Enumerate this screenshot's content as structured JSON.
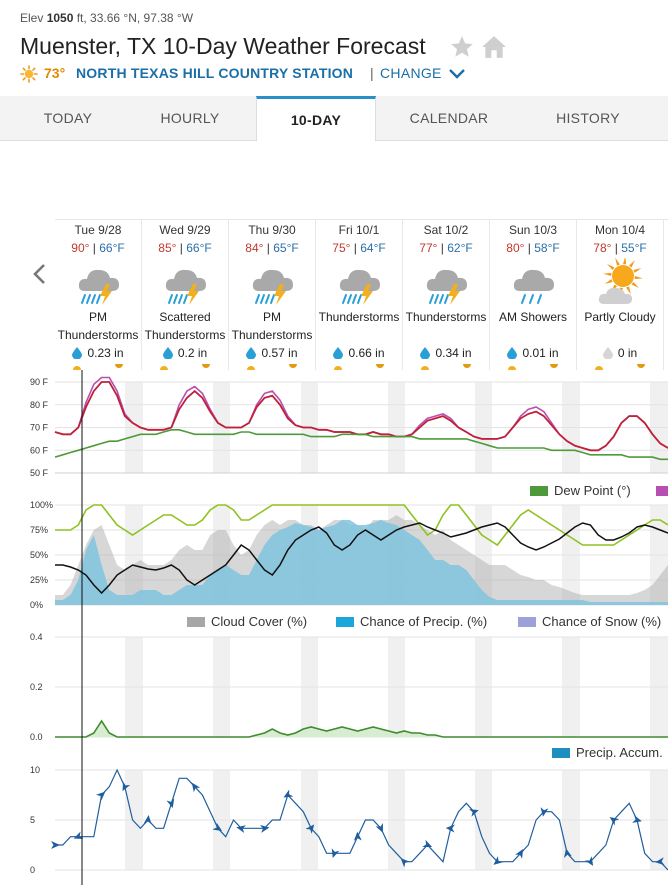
{
  "header": {
    "elev_label": "Elev",
    "elev_value": "1050",
    "elev_rest": " ft, 33.66 °N, 97.38 °W",
    "title": "Muenster, TX 10-Day Weather Forecast",
    "current_temp": "73°",
    "station": "NORTH TEXAS HILL COUNTRY STATION",
    "separator": "|",
    "change": "CHANGE"
  },
  "tabs": [
    {
      "label": "TODAY"
    },
    {
      "label": "HOURLY"
    },
    {
      "label": "10-DAY"
    },
    {
      "label": "CALENDAR"
    },
    {
      "label": "HISTORY"
    }
  ],
  "days": [
    {
      "date": "Tue 9/28",
      "hi": "90°",
      "lo": "66°F",
      "icon": "thunderstorm-icon",
      "cond1": "PM",
      "cond2": "Thunderstorms",
      "precip": "0.23 in"
    },
    {
      "date": "Wed 9/29",
      "hi": "85°",
      "lo": "66°F",
      "icon": "thunderstorm-icon",
      "cond1": "Scattered",
      "cond2": "Thunderstorms",
      "precip": "0.2 in"
    },
    {
      "date": "Thu 9/30",
      "hi": "84°",
      "lo": "65°F",
      "icon": "thunderstorm-icon",
      "cond1": "PM",
      "cond2": "Thunderstorms",
      "precip": "0.57 in"
    },
    {
      "date": "Fri 10/1",
      "hi": "75°",
      "lo": "64°F",
      "icon": "thunderstorm-icon",
      "cond1": "Thunderstorms",
      "cond2": "",
      "precip": "0.66 in"
    },
    {
      "date": "Sat 10/2",
      "hi": "77°",
      "lo": "62°F",
      "icon": "thunderstorm-icon",
      "cond1": "Thunderstorms",
      "cond2": "",
      "precip": "0.34 in"
    },
    {
      "date": "Sun 10/3",
      "hi": "80°",
      "lo": "58°F",
      "icon": "showers-icon",
      "cond1": "AM Showers",
      "cond2": "",
      "precip": "0.01 in"
    },
    {
      "date": "Mon 10/4",
      "hi": "78°",
      "lo": "55°F",
      "icon": "partly-cloudy-icon",
      "cond1": "Partly Cloudy",
      "cond2": "",
      "precip": "0 in"
    }
  ],
  "legends": {
    "dew_point": "Dew Point (°)",
    "cloud_cover": "Cloud Cover (%)",
    "chance_precip": "Chance of Precip. (%)",
    "chance_snow": "Chance of Snow (%)",
    "precip_accum": "Precip. Accum."
  },
  "colors": {
    "temp": "#c0203a",
    "heat_index": "#b84fb0",
    "dew_point": "#4e9a3a",
    "cloud_cover": "#a6a6a6",
    "precip_fill": "#7fc4de",
    "precip_line": "#8fc220",
    "humidity_line": "#111111",
    "accum_fill": "#d8ecd2",
    "accum_line": "#3d8c2e",
    "wind_line": "#1f5e9e",
    "accum_legend": "#1c8fc0",
    "snow_legend": "#9ea0d8"
  },
  "chart_data": [
    {
      "type": "line",
      "title": "",
      "y_ticks": [
        "90 F",
        "80 F",
        "70 F",
        "60 F",
        "50 F"
      ],
      "ylim": [
        50,
        90
      ],
      "series": [
        {
          "name": "",
          "values": [
            68,
            67,
            67,
            70,
            79,
            86,
            90,
            90,
            84,
            75,
            72,
            70,
            69,
            69,
            69,
            70,
            78,
            83,
            86,
            83,
            77,
            72,
            70,
            70,
            70,
            72,
            79,
            83,
            84,
            80,
            74,
            71,
            70,
            70,
            69,
            69,
            68,
            68,
            68,
            67,
            67,
            68,
            67,
            67,
            66,
            66,
            67,
            70,
            73,
            74,
            75,
            73,
            70,
            68,
            66,
            65,
            65,
            65,
            66,
            70,
            74,
            76,
            77,
            75,
            71,
            67,
            64,
            62,
            61,
            60,
            60,
            62,
            66,
            72,
            75,
            75,
            72,
            67,
            63,
            61
          ]
        },
        {
          "name": "",
          "values": [
            68,
            67,
            67,
            70,
            81,
            89,
            92,
            92,
            86,
            76,
            72,
            70,
            69,
            69,
            69,
            70,
            80,
            86,
            88,
            85,
            78,
            72,
            70,
            70,
            70,
            72,
            80,
            85,
            86,
            82,
            75,
            71,
            70,
            70,
            69,
            69,
            68,
            68,
            68,
            67,
            67,
            68,
            67,
            67,
            66,
            66,
            67,
            71,
            74,
            75,
            76,
            74,
            70,
            68,
            66,
            65,
            65,
            65,
            66,
            70,
            75,
            78,
            79,
            77,
            72,
            67,
            64,
            62,
            61,
            60,
            60,
            62,
            66,
            72,
            75,
            75,
            72,
            67,
            63,
            61
          ]
        },
        {
          "name": "Dew Point (°)",
          "values": [
            57,
            58,
            59,
            60,
            61,
            62,
            63,
            64,
            64,
            65,
            66,
            67,
            67,
            67,
            68,
            69,
            69,
            68,
            67,
            67,
            67,
            67,
            67,
            67,
            68,
            68,
            67,
            67,
            67,
            67,
            67,
            67,
            67,
            66,
            66,
            66,
            66,
            67,
            67,
            67,
            67,
            66,
            66,
            66,
            66,
            66,
            66,
            65,
            65,
            65,
            65,
            65,
            65,
            65,
            64,
            63,
            62,
            61,
            61,
            61,
            61,
            61,
            61,
            61,
            60,
            60,
            60,
            60,
            59,
            58,
            58,
            58,
            58,
            58,
            57,
            57,
            57,
            57,
            56,
            56
          ]
        }
      ]
    },
    {
      "type": "area",
      "title": "",
      "y_ticks": [
        "100%",
        "75%",
        "50%",
        "25%",
        "0%"
      ],
      "ylim": [
        0,
        100
      ],
      "series": [
        {
          "name": "Cloud Cover (%)",
          "values": [
            10,
            10,
            20,
            40,
            60,
            75,
            80,
            60,
            40,
            35,
            40,
            45,
            40,
            40,
            40,
            45,
            55,
            60,
            55,
            55,
            70,
            75,
            75,
            60,
            50,
            55,
            70,
            80,
            85,
            80,
            85,
            85,
            80,
            80,
            75,
            80,
            85,
            85,
            80,
            80,
            75,
            85,
            85,
            85,
            90,
            85,
            85,
            80,
            75,
            70,
            75,
            65,
            60,
            55,
            50,
            45,
            40,
            40,
            40,
            35,
            30,
            28,
            25,
            25,
            20,
            18,
            15,
            12,
            10,
            10,
            10,
            10,
            10,
            10,
            10,
            12,
            15,
            20,
            30,
            40
          ]
        },
        {
          "name": "Chance of Precip. (%)",
          "values": [
            5,
            5,
            10,
            25,
            55,
            70,
            40,
            15,
            10,
            10,
            10,
            15,
            15,
            15,
            10,
            10,
            15,
            20,
            20,
            20,
            30,
            35,
            40,
            35,
            30,
            30,
            45,
            60,
            70,
            75,
            78,
            82,
            80,
            78,
            75,
            78,
            80,
            85,
            85,
            80,
            80,
            82,
            85,
            82,
            80,
            75,
            70,
            65,
            55,
            45,
            45,
            40,
            40,
            35,
            25,
            15,
            8,
            5,
            5,
            5,
            5,
            5,
            5,
            5,
            5,
            5,
            5,
            5,
            5,
            3,
            3,
            3,
            3,
            3,
            3,
            3,
            3,
            3,
            3,
            3
          ]
        },
        {
          "name": "",
          "values": [
            75,
            75,
            75,
            80,
            95,
            100,
            100,
            90,
            80,
            75,
            70,
            75,
            80,
            85,
            90,
            90,
            85,
            80,
            80,
            85,
            95,
            100,
            100,
            95,
            85,
            85,
            90,
            95,
            100,
            100,
            100,
            100,
            100,
            100,
            100,
            100,
            100,
            100,
            100,
            100,
            100,
            100,
            100,
            100,
            100,
            100,
            90,
            80,
            70,
            75,
            90,
            100,
            100,
            90,
            80,
            70,
            65,
            60,
            70,
            80,
            90,
            95,
            90,
            85,
            80,
            75,
            70,
            65,
            60,
            60,
            60,
            60,
            60,
            65,
            70,
            75,
            80,
            85,
            85,
            80
          ]
        },
        {
          "name": "",
          "values": [
            40,
            40,
            38,
            35,
            30,
            20,
            12,
            20,
            30,
            35,
            40,
            38,
            36,
            35,
            37,
            40,
            35,
            25,
            20,
            25,
            30,
            35,
            40,
            50,
            60,
            55,
            45,
            35,
            30,
            40,
            55,
            65,
            70,
            75,
            78,
            72,
            60,
            55,
            60,
            70,
            75,
            70,
            65,
            70,
            75,
            78,
            80,
            82,
            78,
            75,
            72,
            68,
            70,
            72,
            75,
            78,
            80,
            82,
            78,
            70,
            62,
            58,
            55,
            58,
            62,
            66,
            72,
            78,
            82,
            80,
            70,
            65,
            65,
            68,
            72,
            78,
            80,
            78,
            75,
            72
          ]
        }
      ]
    },
    {
      "type": "area",
      "title": "",
      "y_ticks": [
        "0.4",
        "0.2",
        "0.0"
      ],
      "ylim": [
        0,
        0.5
      ],
      "series": [
        {
          "name": "Precip. Accum.",
          "values": [
            0,
            0,
            0,
            0,
            0,
            0.02,
            0.08,
            0.02,
            0,
            0,
            0,
            0,
            0,
            0,
            0,
            0,
            0,
            0,
            0,
            0,
            0,
            0,
            0,
            0,
            0,
            0,
            0.01,
            0.02,
            0.04,
            0.02,
            0.01,
            0.02,
            0.04,
            0.05,
            0.04,
            0.03,
            0.04,
            0.05,
            0.04,
            0.03,
            0.04,
            0.05,
            0.04,
            0.03,
            0.02,
            0.03,
            0.02,
            0.02,
            0.01,
            0.01,
            0,
            0,
            0,
            0,
            0,
            0,
            0,
            0,
            0,
            0,
            0,
            0,
            0,
            0,
            0,
            0,
            0,
            0,
            0,
            0,
            0,
            0,
            0,
            0,
            0,
            0,
            0,
            0,
            0,
            0
          ]
        }
      ]
    },
    {
      "type": "line",
      "title": "",
      "y_ticks": [
        "10",
        "5",
        "0"
      ],
      "ylim": [
        0,
        12
      ],
      "series": [
        {
          "name": "",
          "values": [
            3,
            3,
            4,
            4,
            4,
            4,
            9,
            10,
            12,
            10,
            6,
            5,
            6,
            5,
            5,
            8,
            11,
            11,
            10,
            9,
            7,
            5,
            4,
            6,
            5,
            5,
            5,
            5,
            6,
            6,
            9,
            8,
            7,
            5,
            4,
            2,
            2,
            2,
            2,
            4,
            6,
            6,
            5,
            3,
            2,
            1,
            1,
            2,
            3,
            2,
            1,
            5,
            7,
            8,
            7,
            4,
            2,
            1,
            1,
            1,
            2,
            3,
            6,
            7,
            7,
            6,
            2,
            1,
            1,
            1,
            2,
            3,
            6,
            7,
            8,
            6,
            2,
            1,
            1,
            0
          ]
        }
      ]
    }
  ]
}
